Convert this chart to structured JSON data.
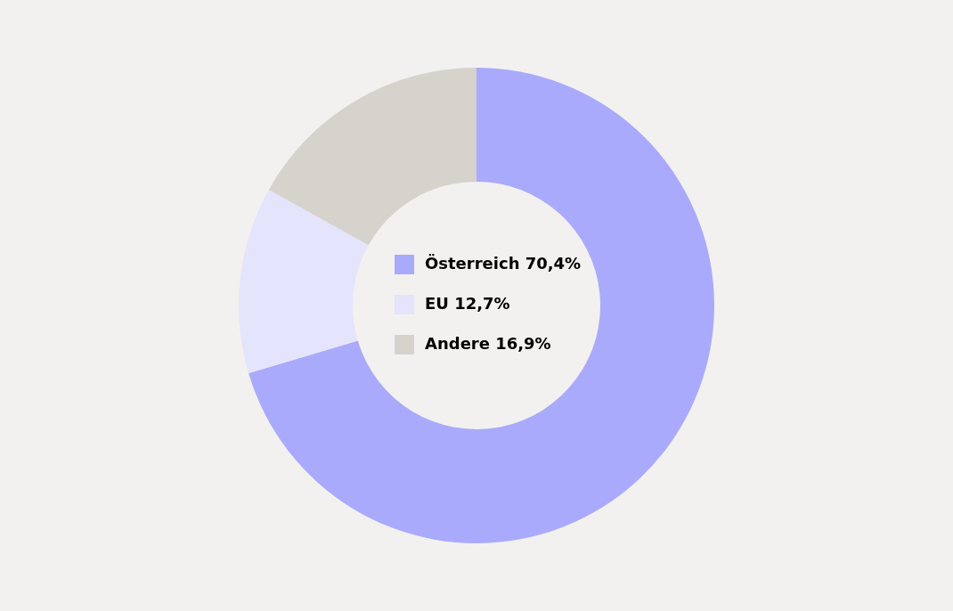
{
  "chart_data": {
    "type": "donut",
    "categories": [
      "Österreich",
      "EU",
      "Andere"
    ],
    "values": [
      70.4,
      12.7,
      16.9
    ],
    "colors": [
      "#aaaafc",
      "#e4e4fc",
      "#d6d2cc"
    ],
    "value_labels": [
      "70,4%",
      "12,7%",
      "16,9%"
    ],
    "legend": "center"
  }
}
